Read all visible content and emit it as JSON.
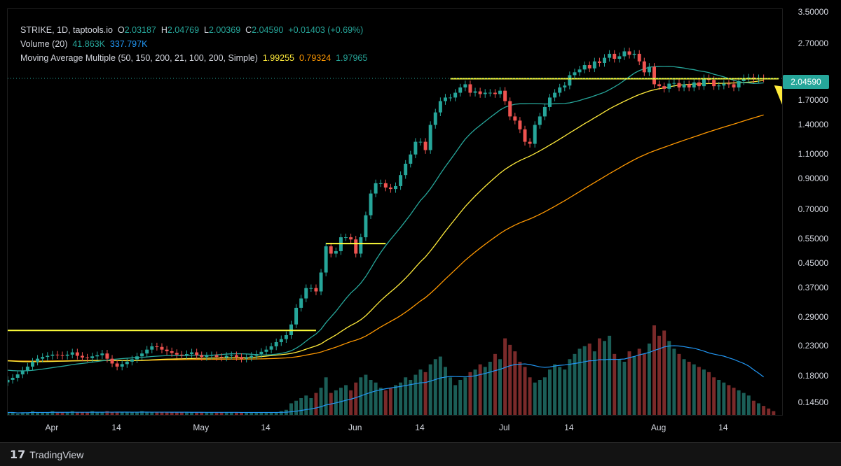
{
  "legend": {
    "symbol": "STRIKE, 1D, taptools.io",
    "o_label": "O",
    "o": "2.03187",
    "h_label": "H",
    "h": "2.04769",
    "l_label": "L",
    "l": "2.00369",
    "c_label": "C",
    "c": "2.04590",
    "change": "+0.01403 (+0.69%)",
    "volume_label": "Volume (20)",
    "volume_value": "41.863K",
    "volume_ma": "337.797K",
    "ma_label": "Moving Average Multiple (50, 150, 200, 21, 100, 200, Simple)",
    "ma1": "1.99255",
    "ma2": "0.79324",
    "ma3": "1.97965"
  },
  "current_price": "2.04590",
  "brand": "TradingView",
  "colors": {
    "up": "#26a69a",
    "down": "#ef5350",
    "vol_up": "#1b5e57",
    "vol_down": "#7a2a2a",
    "ma_teal": "#26a69a",
    "ma_yellow": "#ffeb3b",
    "ma_orange": "#ff9800",
    "vol_ma": "#2196f3",
    "level_line": "#ffff3b",
    "arrow": "#ffeb3b"
  },
  "chart_data": {
    "type": "candlestick",
    "title": "STRIKE, 1D, taptools.io",
    "y_scale": "log",
    "y_ticks": [
      "3.50000",
      "2.70000",
      "1.70000",
      "1.40000",
      "1.10000",
      "0.90000",
      "0.70000",
      "0.55000",
      "0.45000",
      "0.37000",
      "0.29000",
      "0.23000",
      "0.18000",
      "0.14500"
    ],
    "y_range": [
      0.13,
      3.6
    ],
    "x_ticks": [
      {
        "label": "Apr",
        "day": 28
      },
      {
        "label": "14",
        "day": 41
      },
      {
        "label": "May",
        "day": 58
      },
      {
        "label": "14",
        "day": 71
      },
      {
        "label": "Jun",
        "day": 89
      },
      {
        "label": "14",
        "day": 102
      },
      {
        "label": "Jul",
        "day": 119
      },
      {
        "label": "14",
        "day": 132
      },
      {
        "label": "Aug",
        "day": 150
      },
      {
        "label": "14",
        "day": 163
      }
    ],
    "x_day_range": [
      19,
      175
    ],
    "closes": [
      0.175,
      0.178,
      0.183,
      0.189,
      0.195,
      0.203,
      0.208,
      0.211,
      0.213,
      0.215,
      0.214,
      0.213,
      0.215,
      0.219,
      0.213,
      0.21,
      0.209,
      0.212,
      0.214,
      0.217,
      0.208,
      0.2,
      0.195,
      0.199,
      0.203,
      0.207,
      0.212,
      0.217,
      0.224,
      0.23,
      0.229,
      0.224,
      0.221,
      0.218,
      0.215,
      0.214,
      0.216,
      0.219,
      0.214,
      0.211,
      0.213,
      0.214,
      0.211,
      0.21,
      0.213,
      0.214,
      0.211,
      0.208,
      0.21,
      0.213,
      0.216,
      0.22,
      0.224,
      0.23,
      0.238,
      0.244,
      0.252,
      0.275,
      0.315,
      0.34,
      0.37,
      0.37,
      0.36,
      0.42,
      0.52,
      0.49,
      0.5,
      0.56,
      0.56,
      0.55,
      0.49,
      0.56,
      0.67,
      0.8,
      0.87,
      0.87,
      0.84,
      0.83,
      0.85,
      0.93,
      1.02,
      1.1,
      1.22,
      1.22,
      1.14,
      1.4,
      1.55,
      1.7,
      1.75,
      1.75,
      1.82,
      1.9,
      1.95,
      1.82,
      1.84,
      1.8,
      1.82,
      1.82,
      1.8,
      1.85,
      1.7,
      1.5,
      1.45,
      1.35,
      1.22,
      1.2,
      1.4,
      1.5,
      1.62,
      1.75,
      1.82,
      1.9,
      1.93,
      2.1,
      2.15,
      2.2,
      2.28,
      2.22,
      2.35,
      2.32,
      2.42,
      2.5,
      2.4,
      2.45,
      2.55,
      2.48,
      2.5,
      2.35,
      2.15,
      2.25,
      1.95,
      1.92,
      1.88,
      1.96,
      1.97,
      1.9,
      1.95,
      1.9,
      1.98,
      1.92,
      2.05,
      2.02,
      1.92,
      1.93,
      1.96,
      1.95,
      1.9,
      2.0,
      2.05,
      2.06,
      2.03,
      2.05,
      2.046
    ],
    "ma_teal_start": 0.19,
    "ma_yellow_start": 0.205,
    "ma_orange_start": 0.205,
    "volume": [
      3,
      3,
      2,
      3,
      3,
      4,
      3,
      3,
      3,
      4,
      3,
      3,
      3,
      4,
      3,
      3,
      3,
      4,
      3,
      3,
      4,
      3,
      3,
      3,
      3,
      3,
      3,
      4,
      3,
      3,
      3,
      3,
      3,
      3,
      3,
      3,
      3,
      3,
      3,
      3,
      3,
      3,
      3,
      3,
      3,
      3,
      3,
      3,
      3,
      3,
      3,
      3,
      3,
      3,
      3,
      4,
      5,
      10,
      12,
      14,
      16,
      14,
      18,
      22,
      30,
      18,
      20,
      22,
      24,
      20,
      26,
      30,
      32,
      28,
      26,
      22,
      20,
      22,
      24,
      26,
      30,
      28,
      32,
      36,
      34,
      40,
      44,
      46,
      38,
      30,
      24,
      28,
      30,
      34,
      36,
      40,
      38,
      42,
      48,
      44,
      60,
      55,
      50,
      42,
      38,
      30,
      26,
      28,
      30,
      36,
      40,
      38,
      36,
      44,
      48,
      52,
      54,
      56,
      50,
      60,
      58,
      62,
      48,
      44,
      42,
      50,
      46,
      52,
      48,
      56,
      70,
      62,
      66,
      58,
      52,
      48,
      44,
      42,
      40,
      38,
      36,
      34,
      30,
      28,
      26,
      24,
      22,
      20,
      18,
      16,
      12,
      10,
      8,
      6,
      4
    ],
    "volume_ma_end": 20,
    "level_lines": [
      {
        "price": 2.04,
        "day_from": 108,
        "day_to": 174
      },
      {
        "price": 0.532,
        "day_from": 83,
        "day_to": 95
      },
      {
        "price": 0.262,
        "day_from": 19,
        "day_to": 81
      }
    ]
  }
}
